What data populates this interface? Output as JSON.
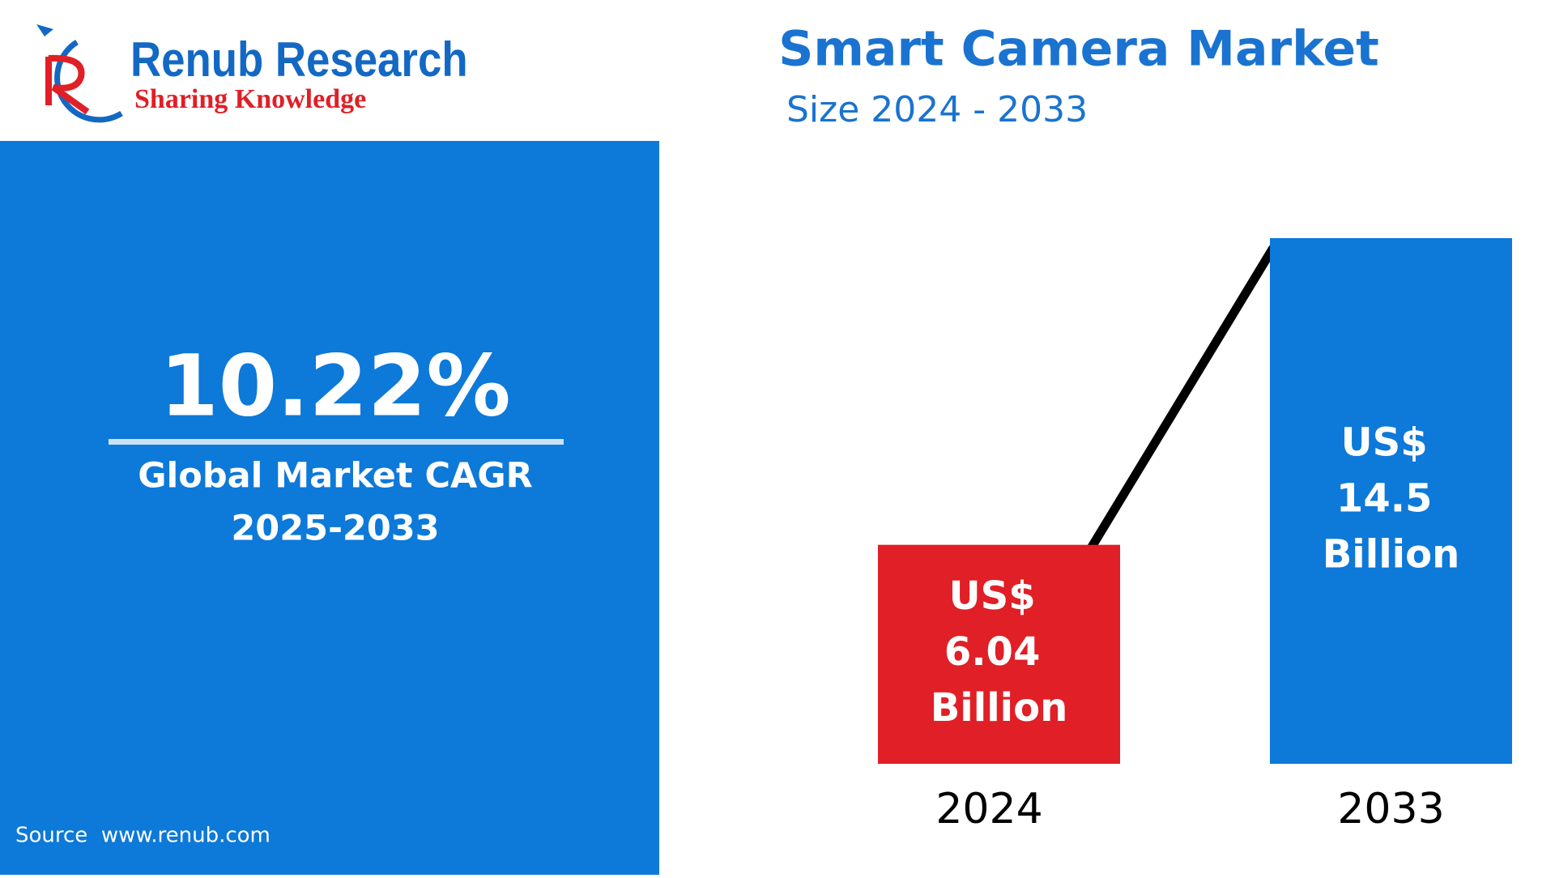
{
  "header": {
    "brand": "Renub Research",
    "tagline": "Sharing Knowledge"
  },
  "panel": {
    "cagr": "10.22%",
    "cagr_label": "Global Market CAGR",
    "cagr_period": "2025-2033",
    "source": "Source  www.renub.com"
  },
  "chart_data": {
    "type": "bar",
    "title": "Smart Camera Market",
    "subtitle": "Size 2024 - 2033",
    "categories": [
      "2024",
      "2033"
    ],
    "values": [
      6.04,
      14.5
    ],
    "value_labels": [
      "US$ 6.04 Billion",
      "US$ 14.5 Billion"
    ],
    "colors": [
      "#e01f26",
      "#0d79d9"
    ]
  }
}
